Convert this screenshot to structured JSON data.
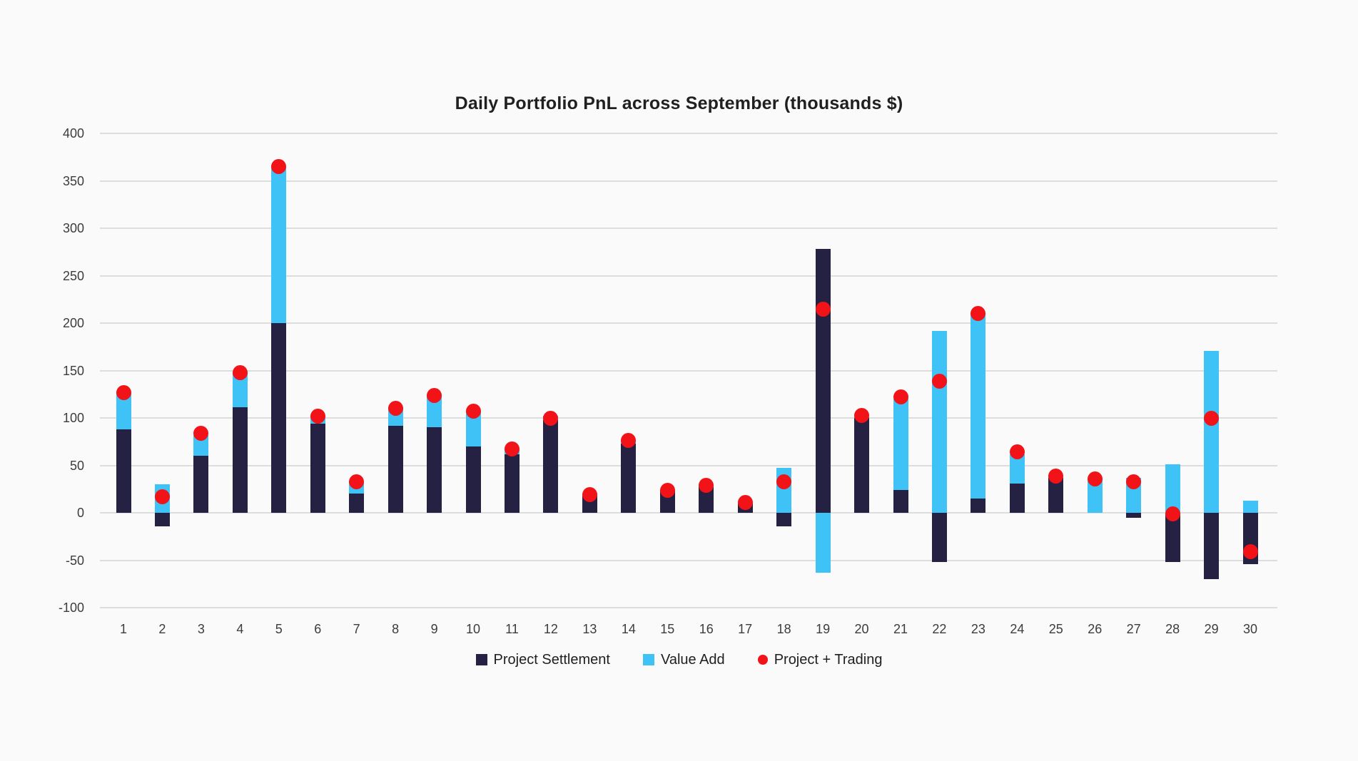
{
  "page": {
    "background": "#FAFAFA"
  },
  "chart_data": {
    "type": "bar",
    "stacked": true,
    "title": "Daily Portfolio PnL across September (thousands $)",
    "categories": [
      "1",
      "2",
      "3",
      "4",
      "5",
      "6",
      "7",
      "8",
      "9",
      "10",
      "11",
      "12",
      "13",
      "14",
      "15",
      "16",
      "17",
      "18",
      "19",
      "20",
      "21",
      "22",
      "23",
      "24",
      "25",
      "26",
      "27",
      "28",
      "29",
      "30"
    ],
    "series": [
      {
        "name": "Project Settlement",
        "type": "bar",
        "color": "#242143",
        "values": [
          88,
          -14,
          60,
          111,
          200,
          94,
          20,
          92,
          90,
          70,
          62,
          98,
          18,
          73,
          23,
          27,
          10,
          -14,
          278,
          100,
          24,
          -52,
          15,
          31,
          37,
          0,
          -5,
          -52,
          -70,
          -54
        ]
      },
      {
        "name": "Value Add",
        "type": "bar",
        "color": "#3FC3F7",
        "values": [
          40,
          30,
          22,
          36,
          165,
          8,
          13,
          19,
          34,
          37,
          5,
          4,
          2,
          3,
          2,
          2,
          2,
          47,
          -63,
          3,
          96,
          192,
          195,
          31,
          2,
          36,
          37,
          51,
          171,
          13
        ]
      },
      {
        "name": "Project + Trading",
        "type": "scatter",
        "color": "#F11318",
        "values": [
          127,
          17,
          84,
          148,
          365,
          102,
          33,
          110,
          124,
          107,
          67,
          100,
          19,
          76,
          24,
          29,
          11,
          33,
          215,
          103,
          122,
          139,
          210,
          64,
          39,
          36,
          33,
          -1,
          100,
          -41
        ]
      }
    ],
    "ylim": [
      -100,
      400
    ],
    "ytick_step": 50,
    "xlabel": "",
    "ylabel": "",
    "grid": true,
    "legend_position": "bottom",
    "background_color": "#FAFAFA",
    "gridline_color": "#DDDDDD",
    "tick_label_color": "#3C3C3C",
    "title_color": "#202020"
  }
}
